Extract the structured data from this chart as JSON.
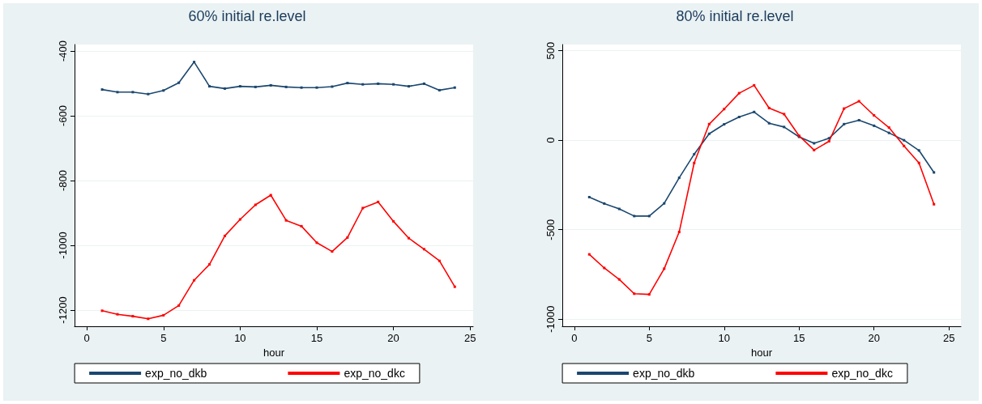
{
  "chart_data": [
    {
      "type": "line",
      "title": "60% initial re.level",
      "xlabel": "hour",
      "x": [
        1,
        2,
        3,
        4,
        5,
        6,
        7,
        8,
        9,
        10,
        11,
        12,
        13,
        14,
        15,
        16,
        17,
        18,
        19,
        20,
        21,
        22,
        23,
        24
      ],
      "series": [
        {
          "name": "exp_no_dkb",
          "color": "#1a476f",
          "values": [
            -519,
            -527,
            -527,
            -533,
            -522,
            -498,
            -434,
            -509,
            -516,
            -509,
            -511,
            -506,
            -511,
            -513,
            -513,
            -510,
            -499,
            -503,
            -501,
            -503,
            -509,
            -501,
            -521,
            -513
          ]
        },
        {
          "name": "exp_no_dkc",
          "color": "#ff0000",
          "values": [
            -1202,
            -1213,
            -1219,
            -1227,
            -1216,
            -1186,
            -1108,
            -1059,
            -971,
            -920,
            -875,
            -845,
            -923,
            -941,
            -992,
            -1019,
            -976,
            -885,
            -866,
            -926,
            -978,
            -1012,
            -1048,
            -1128
          ]
        }
      ],
      "xlim": [
        -0.8,
        25.2
      ],
      "xticks": [
        0,
        5,
        10,
        15,
        20,
        25
      ],
      "ylim": [
        -1250,
        -380
      ],
      "yticks": [
        -1200,
        -1000,
        -800,
        -600,
        -400
      ],
      "grid": "y",
      "legend": "bottom",
      "marker": "square",
      "line_style": "solid"
    },
    {
      "type": "line",
      "title": "80% initial re.level",
      "xlabel": "hour",
      "x": [
        1,
        2,
        3,
        4,
        5,
        6,
        7,
        8,
        9,
        10,
        11,
        12,
        13,
        14,
        15,
        16,
        17,
        18,
        19,
        20,
        21,
        22,
        23,
        24
      ],
      "series": [
        {
          "name": "exp_no_dkb",
          "color": "#1a476f",
          "values": [
            -318,
            -354,
            -384,
            -424,
            -424,
            -353,
            -210,
            -78,
            36,
            89,
            130,
            158,
            95,
            74,
            19,
            -17,
            11,
            90,
            112,
            81,
            41,
            0,
            -57,
            -180
          ]
        },
        {
          "name": "exp_no_dkc",
          "color": "#ff0000",
          "values": [
            -638,
            -714,
            -778,
            -858,
            -862,
            -718,
            -513,
            -127,
            90,
            174,
            263,
            307,
            180,
            146,
            25,
            -55,
            -6,
            177,
            218,
            139,
            71,
            -32,
            -127,
            -358
          ]
        }
      ],
      "xlim": [
        -0.8,
        25.8
      ],
      "xticks": [
        0,
        5,
        10,
        15,
        20,
        25
      ],
      "ylim": [
        -1040,
        535
      ],
      "yticks": [
        -1000,
        -500,
        0,
        500
      ],
      "grid": "y",
      "legend": "bottom",
      "marker": "square",
      "line_style": "solid"
    }
  ]
}
